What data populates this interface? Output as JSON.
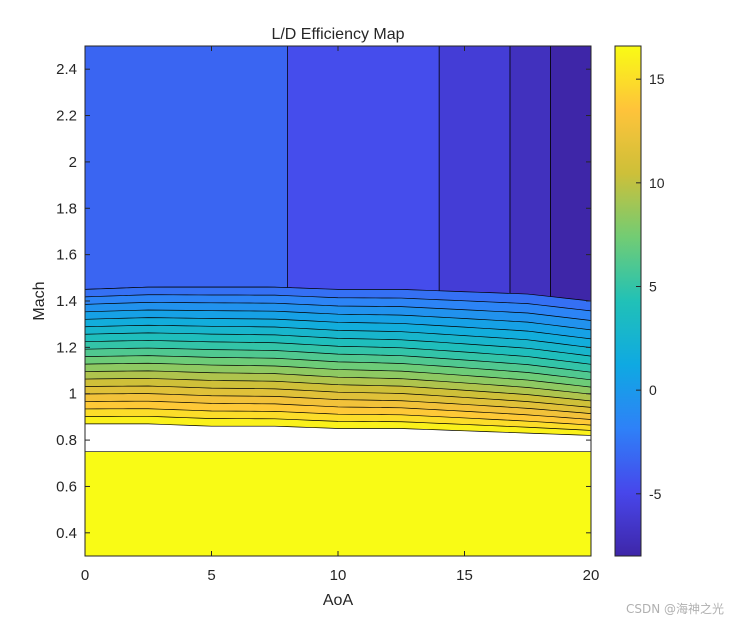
{
  "chart_data": {
    "type": "contour",
    "title": "L/D Efficiency Map",
    "xlabel": "AoA",
    "ylabel": "Mach",
    "xlim": [
      0,
      20
    ],
    "ylim": [
      0.3,
      2.5
    ],
    "x_ticks": [
      0,
      5,
      10,
      15,
      20
    ],
    "x_tick_labels": [
      "0",
      "5",
      "10",
      "15",
      "20"
    ],
    "y_ticks": [
      0.4,
      0.6,
      0.8,
      1,
      1.2,
      1.4,
      1.6,
      1.8,
      2,
      2.2,
      2.4
    ],
    "y_tick_labels": [
      "0.4",
      "0.6",
      "0.8",
      "1",
      "1.2",
      "1.4",
      "1.6",
      "1.8",
      "2",
      "2.2",
      "2.4"
    ],
    "colorbar": {
      "range": [
        -8,
        16.6
      ],
      "ticks": [
        -5,
        0,
        5,
        10,
        15
      ],
      "tick_labels": [
        "-5",
        "0",
        "5",
        "10",
        "15"
      ],
      "colormap": "parula"
    },
    "contour_levels": 18,
    "upper_region_bands": [
      {
        "aoa_start": 0,
        "aoa_end": 8,
        "value": -3.3
      },
      {
        "aoa_start": 8,
        "aoa_end": 14,
        "value": -4.6
      },
      {
        "aoa_start": 14,
        "aoa_end": 16.8,
        "value": -5.9
      },
      {
        "aoa_start": 16.8,
        "aoa_end": 18.4,
        "value": -7.0
      },
      {
        "aoa_start": 18.4,
        "aoa_end": 20,
        "value": -8.0
      }
    ],
    "transition_boundaries_mach": {
      "aoa": [
        0,
        2.5,
        5,
        7.5,
        10,
        12.5,
        15,
        17.5,
        20
      ],
      "level_upper": [
        1.45,
        1.46,
        1.46,
        1.46,
        1.45,
        1.45,
        1.44,
        1.43,
        1.4
      ],
      "level_lower": [
        0.87,
        0.87,
        0.86,
        0.86,
        0.85,
        0.85,
        0.84,
        0.83,
        0.82
      ]
    },
    "subsonic_plateau": {
      "mach_max": 0.75,
      "value": 16.6
    }
  },
  "watermark": "CSDN @海神之光"
}
